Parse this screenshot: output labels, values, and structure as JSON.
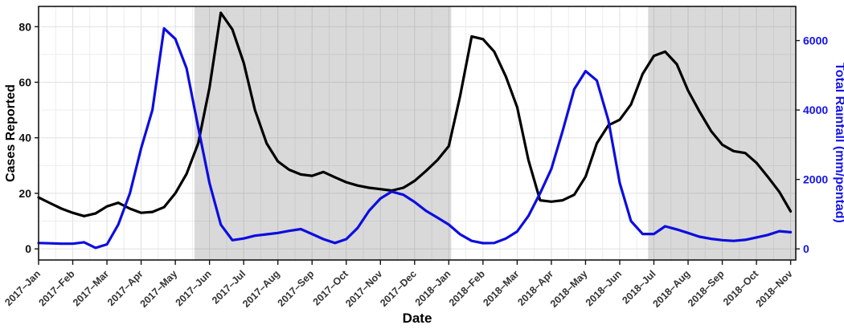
{
  "chart_data": {
    "type": "line",
    "title": "",
    "xlabel": "Date",
    "ylabel_left": "Cases Reported",
    "ylabel_right": "Total Rainfall (mm/pentad)",
    "x_tick_labels": [
      "2017–Jan",
      "2017–Feb",
      "2017–Mar",
      "2017–Apr",
      "2017–May",
      "2017–Jun",
      "2017–Jul",
      "2017–Aug",
      "2017–Sep",
      "2017–Oct",
      "2017–Nov",
      "2017–Dec",
      "2018–Jan",
      "2018–Feb",
      "2018–Mar",
      "2018–Apr",
      "2018–May",
      "2018–Jun",
      "2018–Jul",
      "2018–Aug",
      "2018–Sep",
      "2018–Oct",
      "2018–Nov"
    ],
    "y_left_ticks": [
      0,
      20,
      40,
      60,
      80
    ],
    "y_right_ticks": [
      0,
      2000,
      4000,
      6000
    ],
    "y_left_range": [
      -4,
      87.3
    ],
    "y_right_range": [
      -320,
      6984
    ],
    "x_range_months": [
      0,
      22.15
    ],
    "grid": {
      "vertical_every_months": 0.5,
      "horizontal_every_left_units": 10
    },
    "legend_position": "none",
    "shaded_regions": [
      {
        "x_start": 4.56,
        "x_end": 12.07
      },
      {
        "x_start": 17.83,
        "x_end": 22.15
      }
    ],
    "x": [
      0,
      0.33,
      0.67,
      1,
      1.33,
      1.67,
      2,
      2.33,
      2.67,
      3,
      3.33,
      3.67,
      4,
      4.33,
      4.67,
      5,
      5.33,
      5.67,
      6,
      6.33,
      6.67,
      7,
      7.33,
      7.67,
      8,
      8.33,
      8.67,
      9,
      9.33,
      9.67,
      10,
      10.33,
      10.67,
      11,
      11.33,
      11.67,
      12,
      12.33,
      12.67,
      13,
      13.33,
      13.67,
      14,
      14.33,
      14.67,
      15,
      15.33,
      15.67,
      16,
      16.33,
      16.67,
      17,
      17.33,
      17.67,
      18,
      18.33,
      18.67,
      19,
      19.33,
      19.67,
      20,
      20.33,
      20.67,
      21,
      21.33,
      21.67,
      22
    ],
    "series": [
      {
        "name": "Cases Reported",
        "axis": "left",
        "color": "#000000",
        "values": [
          18.5,
          16.5,
          14.5,
          13,
          11.8,
          12.8,
          15.3,
          16.6,
          14.5,
          13,
          13.3,
          15,
          20,
          27,
          38,
          58,
          85,
          79,
          67,
          50,
          38,
          31.5,
          28.5,
          26.8,
          26.3,
          27.7,
          25.8,
          24,
          22.8,
          22,
          21.5,
          21,
          22,
          24.5,
          28,
          32,
          37,
          55,
          76.5,
          75.5,
          71,
          62,
          51,
          32,
          17.5,
          17,
          17.5,
          19.5,
          26,
          38,
          44.5,
          46.5,
          52,
          63,
          69.5,
          71,
          66.5,
          57,
          49.5,
          42.5,
          37.5,
          35.2,
          34.5,
          31,
          26,
          20.5,
          13.5
        ]
      },
      {
        "name": "Total Rainfall",
        "axis": "right",
        "color": "#0d0de0",
        "values": [
          170,
          160,
          150,
          150,
          190,
          30,
          130,
          700,
          1600,
          2900,
          4000,
          6350,
          6050,
          5200,
          3500,
          1900,
          700,
          250,
          300,
          380,
          420,
          460,
          520,
          570,
          430,
          280,
          170,
          280,
          600,
          1100,
          1450,
          1650,
          1560,
          1350,
          1100,
          900,
          700,
          420,
          230,
          165,
          170,
          300,
          500,
          950,
          1600,
          2300,
          3400,
          4600,
          5120,
          4850,
          3700,
          1900,
          800,
          430,
          430,
          650,
          560,
          460,
          350,
          290,
          250,
          230,
          260,
          330,
          400,
          510,
          480
        ]
      }
    ],
    "colors": {
      "line_black": "#000000",
      "line_blue": "#0d0de0",
      "right_axis_blue": "#1414e8",
      "grid_major": "#e0e0e0",
      "grid_minor": "#ededed",
      "shade_fill": "rgba(110,110,110,0.26)",
      "panel_border": "#141414",
      "tick_color": "#141414",
      "left_tick_label": "#111111",
      "x_tick_label": "#333333",
      "panel_background": "#ffffff"
    }
  }
}
